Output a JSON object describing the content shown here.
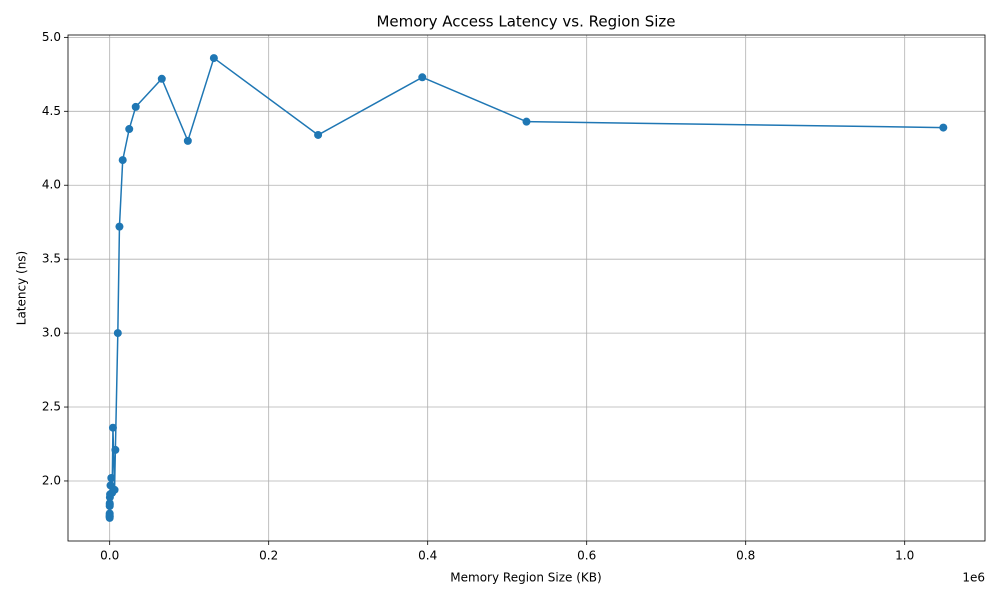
{
  "chart_data": {
    "type": "line",
    "title": "Memory Access Latency vs. Region Size",
    "x_label": "Memory Region Size (KB)",
    "y_label": "Latency (ns)",
    "x_offset_label": "1e6",
    "grid": true,
    "markers": true,
    "x": [
      1,
      2,
      4,
      8,
      16,
      32,
      64,
      128,
      256,
      512,
      1024,
      2048,
      3072,
      4096,
      6144,
      7168,
      10240,
      12288,
      16384,
      24576,
      32768,
      65536,
      98304,
      131072,
      262144,
      393216,
      524288,
      1048576
    ],
    "series": [
      {
        "name": "Latency",
        "color": "#1f77b4",
        "values": [
          1.76,
          1.75,
          1.77,
          1.78,
          1.76,
          1.83,
          1.85,
          1.84,
          1.89,
          1.91,
          1.97,
          2.02,
          1.92,
          2.36,
          1.94,
          2.21,
          3.0,
          3.72,
          4.17,
          4.38,
          4.53,
          4.72,
          4.3,
          4.86,
          4.34,
          4.73,
          4.43,
          4.39
        ]
      }
    ],
    "xlim": [
      -52429,
      1101005
    ],
    "ylim": [
      1.594,
      5.016
    ],
    "xticks": [
      {
        "value": 0,
        "label": "0.0"
      },
      {
        "value": 200000,
        "label": "0.2"
      },
      {
        "value": 400000,
        "label": "0.4"
      },
      {
        "value": 600000,
        "label": "0.6"
      },
      {
        "value": 800000,
        "label": "0.8"
      },
      {
        "value": 1000000,
        "label": "1.0"
      }
    ],
    "yticks": [
      {
        "value": 2.0,
        "label": "2.0"
      },
      2.5,
      {
        "value": 3.0,
        "label": "3.0"
      },
      3.5,
      {
        "value": 4.0,
        "label": "4.0"
      },
      4.5,
      {
        "value": 5.0,
        "label": "5.0"
      }
    ]
  }
}
